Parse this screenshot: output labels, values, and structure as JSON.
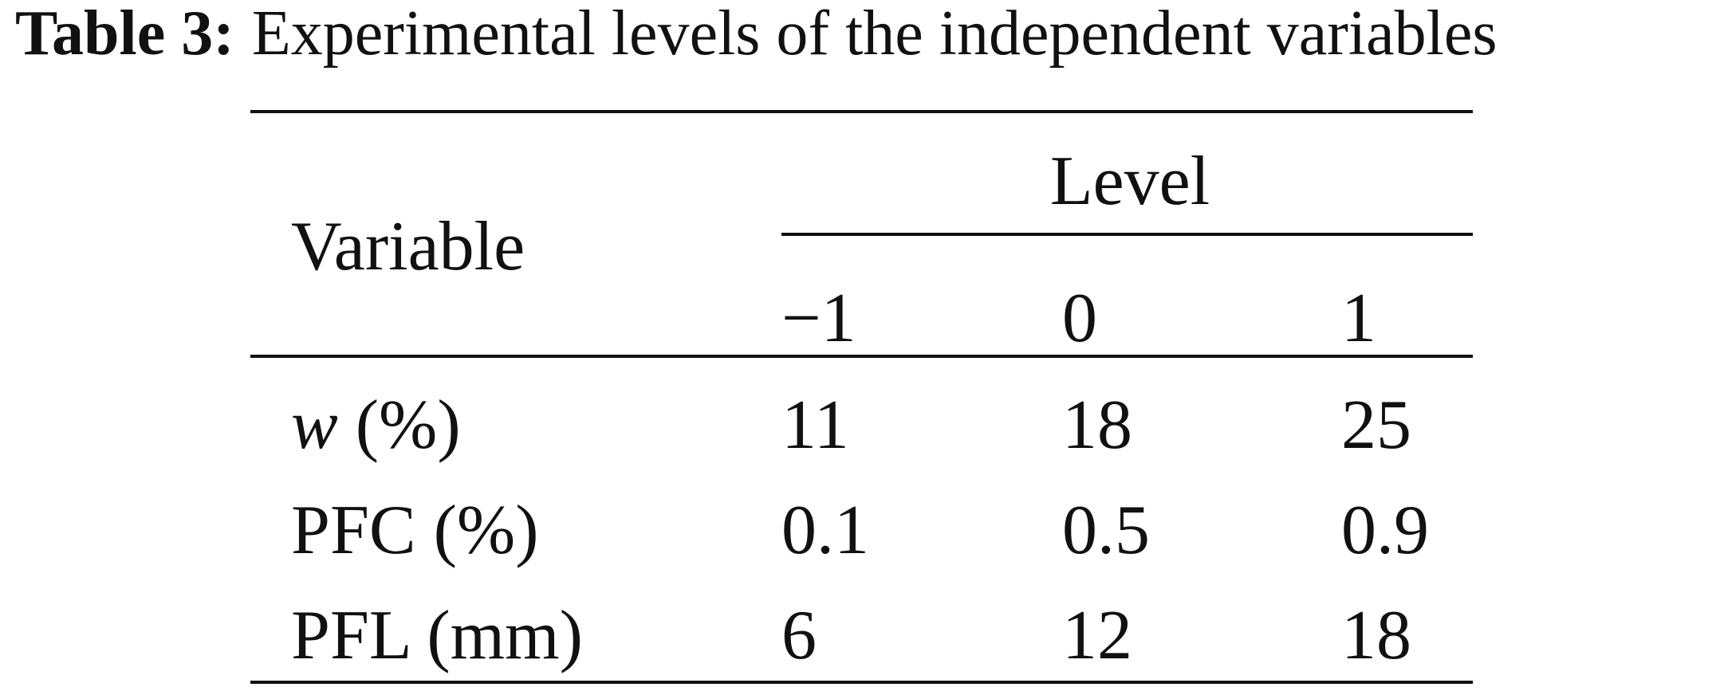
{
  "caption": {
    "label": "Table 3:",
    "text": "Experimental levels of the independent variables"
  },
  "table": {
    "header": {
      "variable": "Variable",
      "group": "Level",
      "levels": [
        "−1",
        "0",
        "1"
      ]
    },
    "rows": [
      {
        "variable_italic": "w",
        "variable": "(%)",
        "values": [
          "11",
          "18",
          "25"
        ]
      },
      {
        "variable": "PFC (%)",
        "values": [
          "0.1",
          "0.5",
          "0.9"
        ]
      },
      {
        "variable": "PFL (mm)",
        "values": [
          "6",
          "12",
          "18"
        ]
      }
    ]
  }
}
